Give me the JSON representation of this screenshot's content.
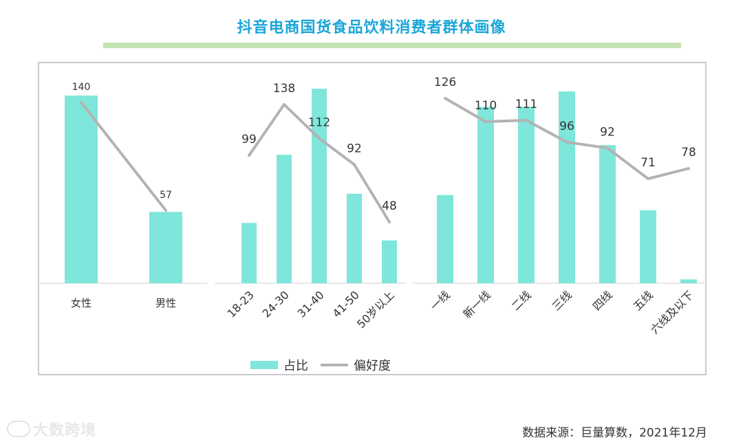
{
  "title": "抖音电商国货食品饮料消费者群体画像",
  "colors": {
    "bar": "#7ee6da",
    "line": "#b3b3b3",
    "title": "#1aa6d8",
    "rule": "#c5e3b3"
  },
  "legend": {
    "bar_label": "占比",
    "line_label": "偏好度"
  },
  "source": "数据来源：巨量算数，2021年12月",
  "watermark": "大数跨境",
  "chart_data": [
    {
      "type": "bar+line",
      "group": "gender",
      "categories": [
        "女性",
        "男性"
      ],
      "series": [
        {
          "name": "占比",
          "kind": "bar",
          "values": [
            1.0,
            0.38
          ]
        },
        {
          "name": "偏好度",
          "kind": "line",
          "values": [
            140,
            57
          ]
        }
      ],
      "line_labels": [
        "140",
        "57"
      ]
    },
    {
      "type": "bar+line",
      "group": "age",
      "categories": [
        "18-23",
        "24-30",
        "31-40",
        "41-50",
        "50岁以上"
      ],
      "series": [
        {
          "name": "占比",
          "kind": "bar",
          "values": [
            0.31,
            0.66,
            1.0,
            0.46,
            0.22
          ]
        },
        {
          "name": "偏好度",
          "kind": "line",
          "values": [
            99,
            138,
            112,
            92,
            48
          ]
        }
      ],
      "line_labels": [
        "99",
        "138",
        "112",
        "92",
        "48"
      ]
    },
    {
      "type": "bar+line",
      "group": "city_tier",
      "categories": [
        "一线",
        "新一线",
        "二线",
        "三线",
        "四线",
        "五线",
        "六线及以下"
      ],
      "series": [
        {
          "name": "占比",
          "kind": "bar",
          "values": [
            0.46,
            0.92,
            0.92,
            1.0,
            0.72,
            0.38,
            0.02
          ]
        },
        {
          "name": "偏好度",
          "kind": "line",
          "values": [
            126,
            110,
            111,
            96,
            92,
            71,
            78
          ]
        }
      ],
      "line_labels": [
        "126",
        "110",
        "111",
        "96",
        "92",
        "71",
        "78"
      ]
    }
  ]
}
